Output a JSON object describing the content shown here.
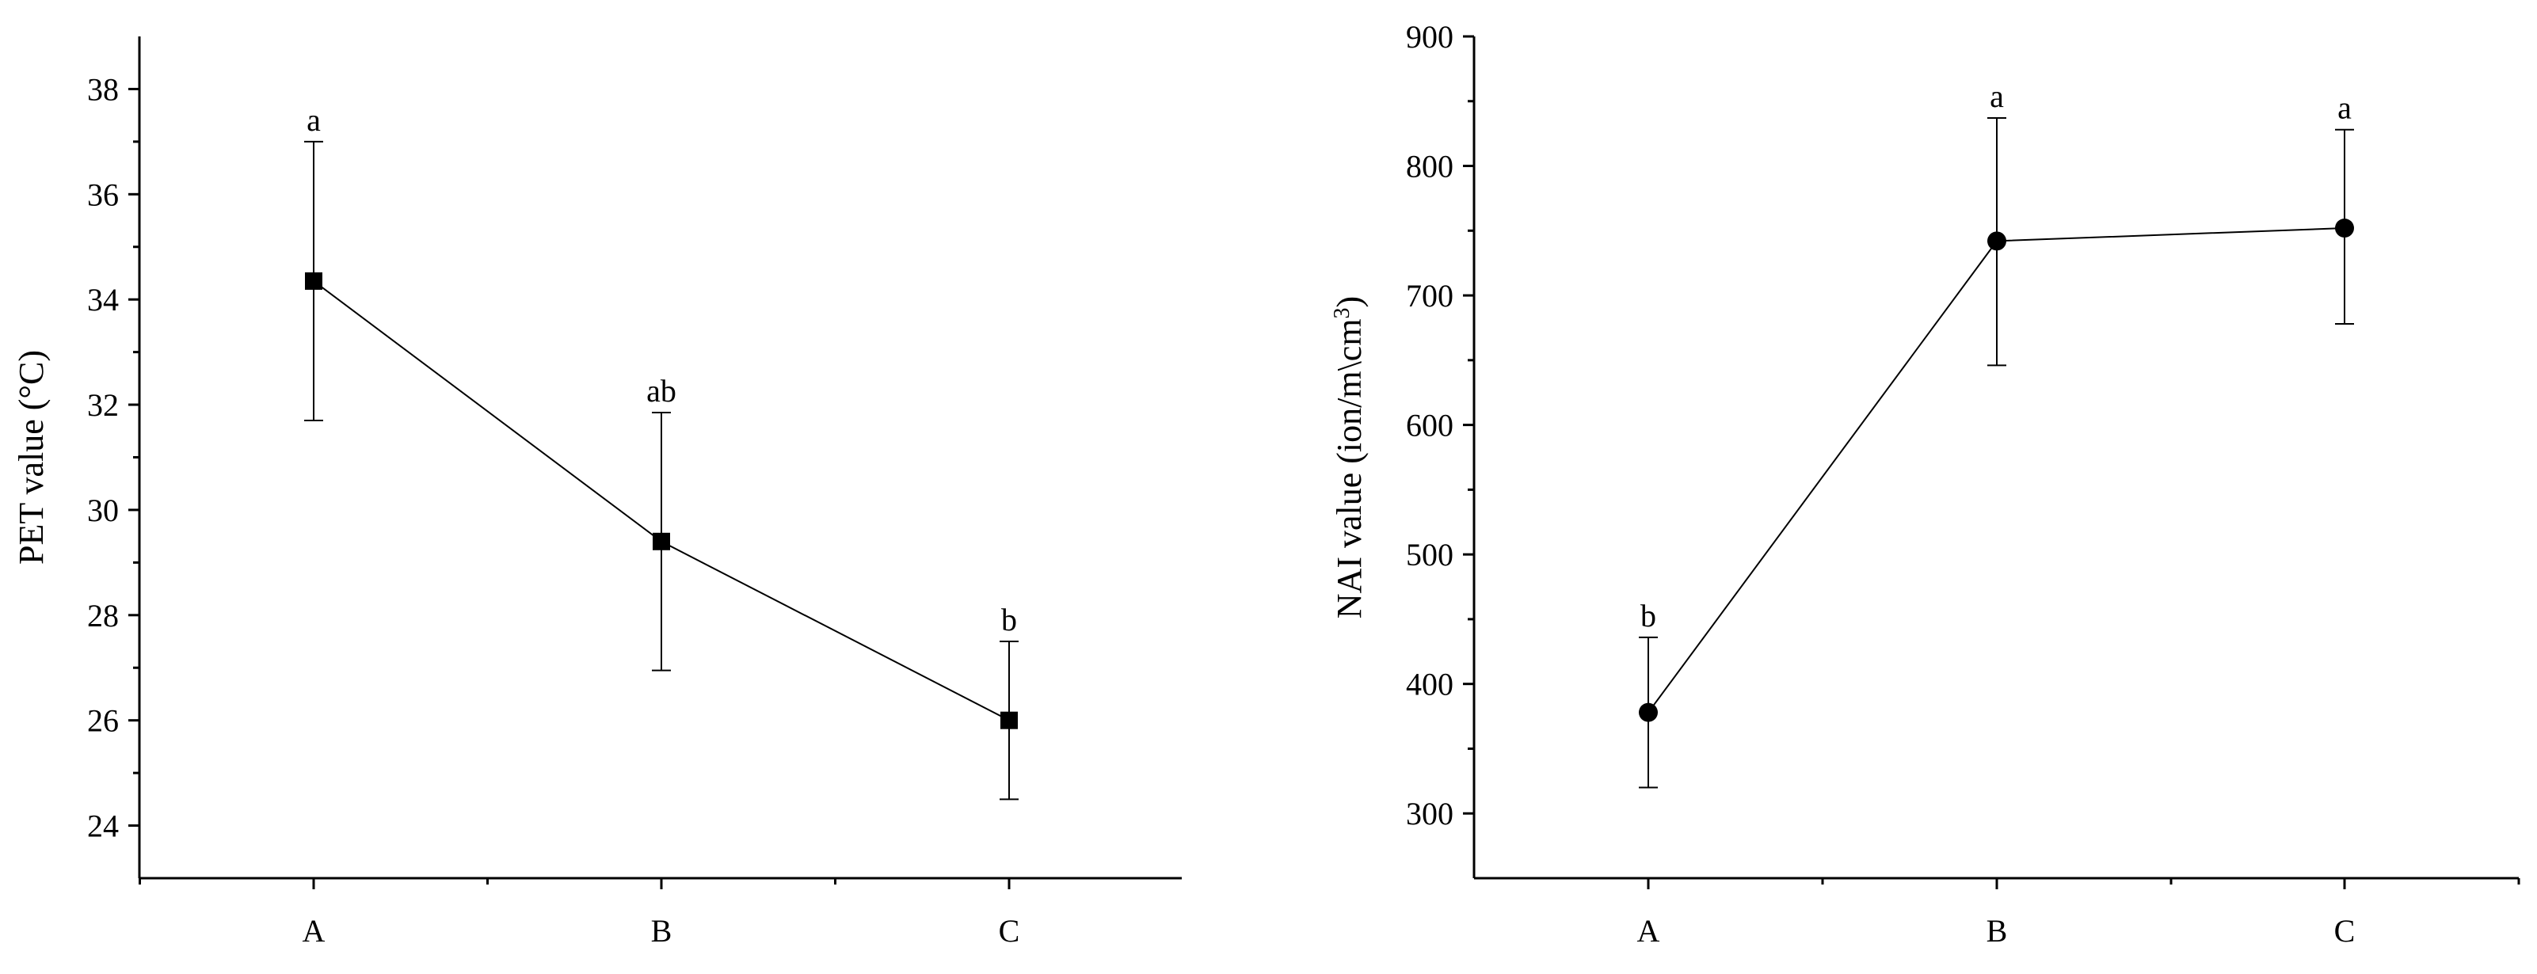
{
  "chart_data": [
    {
      "type": "line",
      "categories": [
        "A",
        "B",
        "C"
      ],
      "values": [
        34.35,
        29.4,
        26.0
      ],
      "error_upper": [
        37.0,
        31.85,
        27.5
      ],
      "error_lower": [
        31.7,
        26.95,
        24.5
      ],
      "group_labels": [
        "a",
        "ab",
        "b"
      ],
      "marker": "square",
      "ylabel": "PET value (°C)",
      "ylim": [
        23,
        39
      ],
      "yticks": [
        24,
        26,
        28,
        30,
        32,
        34,
        36,
        38
      ],
      "ytick_labels": [
        "24",
        "26",
        "28",
        "30",
        "32",
        "34",
        "36",
        "38"
      ],
      "grid": false
    },
    {
      "type": "line",
      "categories": [
        "A",
        "B",
        "C"
      ],
      "values": [
        378,
        742,
        752
      ],
      "error_upper": [
        436,
        837,
        828
      ],
      "error_lower": [
        320,
        646,
        678
      ],
      "group_labels": [
        "b",
        "a",
        "a"
      ],
      "marker": "circle",
      "ylabel": "NAI value (ion/m\\cm",
      "ylabel_superscript": "3",
      "ylabel_suffix": ")",
      "ylim": [
        250,
        900
      ],
      "yticks": [
        300,
        400,
        500,
        600,
        700,
        800,
        900
      ],
      "ytick_labels": [
        "300",
        "400",
        "500",
        "600",
        "700",
        "800",
        "900"
      ],
      "grid": false
    }
  ]
}
